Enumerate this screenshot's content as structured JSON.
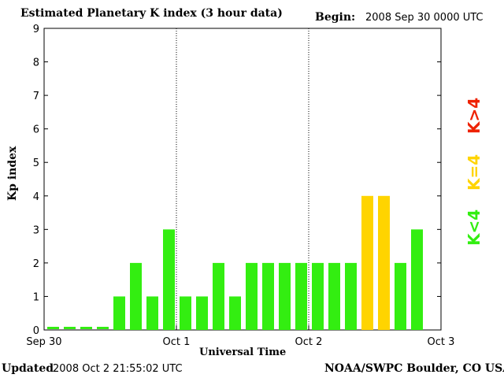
{
  "header": {
    "title": "Estimated Planetary K index (3 hour data)",
    "begin_label": "Begin:",
    "begin_value": "2008 Sep 30 0000 UTC"
  },
  "footer": {
    "updated_label": "Updated",
    "updated_value": "2008 Oct  2 21:55:02 UTC",
    "source": "NOAA/SWPC Boulder, CO USA"
  },
  "legend": {
    "k_gt_4": "K>4",
    "k_eq_4": "K=4",
    "k_lt_4": "K<4"
  },
  "colors": {
    "green": "#33ee11",
    "yellow": "#ffd400",
    "red": "#ee2200"
  },
  "chart_data": {
    "type": "bar",
    "title": "Estimated Planetary K index (3 hour data)",
    "xlabel": "Universal Time",
    "ylabel": "Kp index",
    "ylim": [
      0,
      9
    ],
    "yticks": [
      "0",
      "1",
      "2",
      "3",
      "4",
      "5",
      "6",
      "7",
      "8",
      "9"
    ],
    "xticks": [
      "Sep 30",
      "Oct 1",
      "Oct 2",
      "Oct 3"
    ],
    "interval_hours": 3,
    "values": [
      0,
      0,
      0,
      0,
      1,
      2,
      1,
      3,
      1,
      1,
      2,
      1,
      2,
      2,
      2,
      2,
      2,
      2,
      2,
      4,
      4,
      2,
      3
    ],
    "bar_colors": [
      "green",
      "green",
      "green",
      "green",
      "green",
      "green",
      "green",
      "green",
      "green",
      "green",
      "green",
      "green",
      "green",
      "green",
      "green",
      "green",
      "green",
      "green",
      "green",
      "yellow",
      "yellow",
      "green",
      "green"
    ],
    "day_separators": [
      "Oct 1",
      "Oct 2"
    ],
    "grid": false
  }
}
